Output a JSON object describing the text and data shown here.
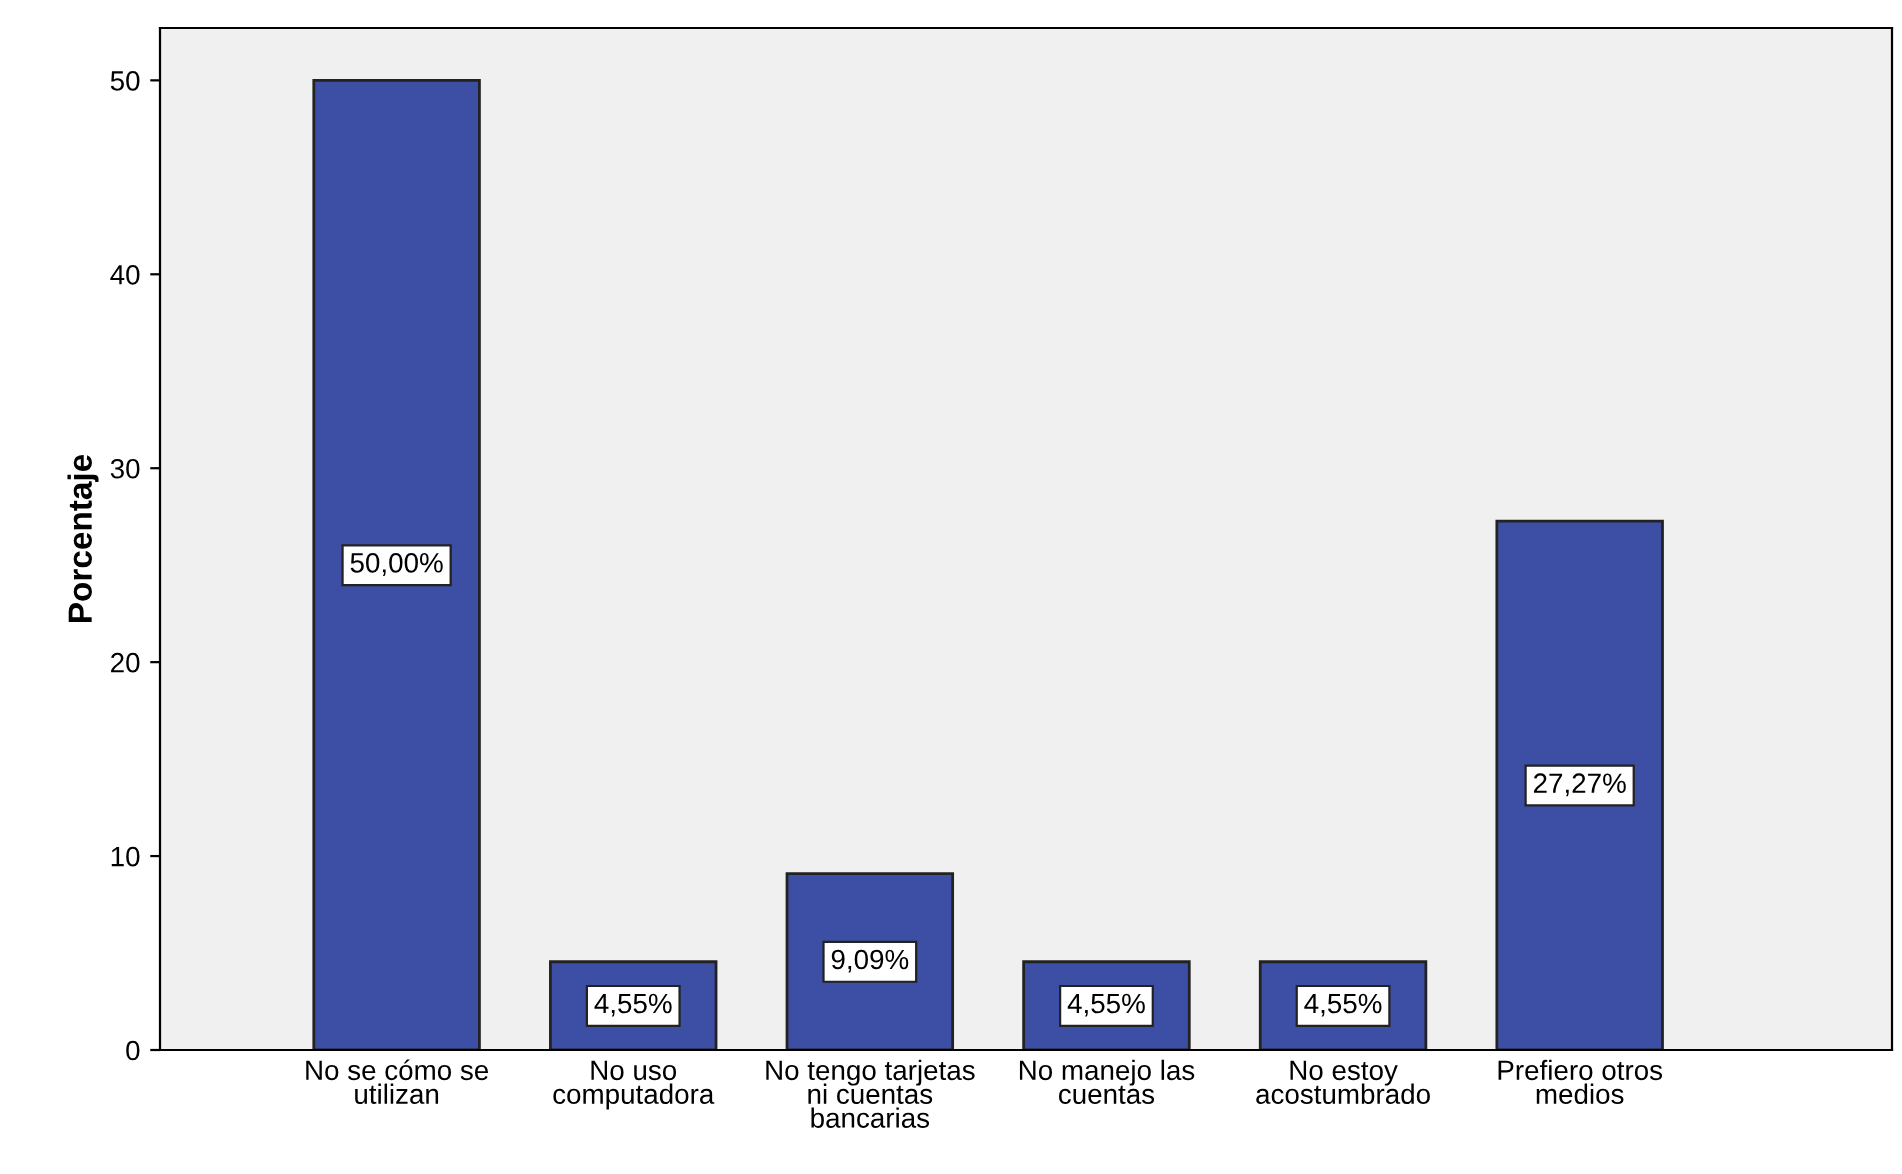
{
  "chart_data": {
    "type": "bar",
    "ylabel": "Porcentaje",
    "categories": [
      "No se cómo se\nutilizan",
      "No uso\ncomputadora",
      "No tengo tarjetas\nni cuentas\nbancarias",
      "No manejo las\ncuentas",
      "No estoy\nacostumbrado",
      "Prefiero otros\nmedios"
    ],
    "values": [
      50.0,
      4.55,
      9.09,
      4.55,
      4.55,
      27.27
    ],
    "value_labels": [
      "50,00%",
      "4,55%",
      "9,09%",
      "4,55%",
      "4,55%",
      "27,27%"
    ],
    "color": "#3d4fa4",
    "ylim": [
      0,
      52.7
    ],
    "yticks": [
      0,
      10,
      20,
      30,
      40,
      50
    ],
    "grid": false,
    "legend": false
  }
}
